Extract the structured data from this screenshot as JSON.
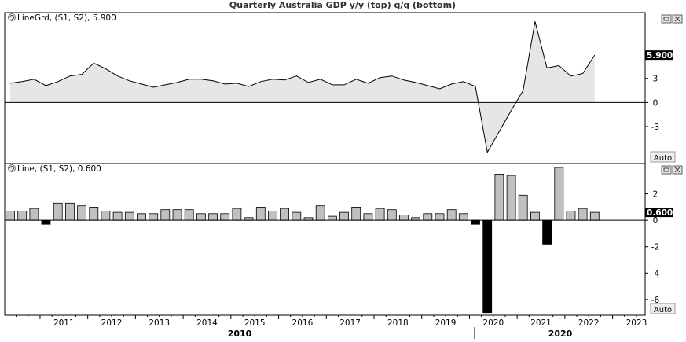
{
  "title": "Quarterly  Australia GDP y/y (top) q/q (bottom)",
  "colors": {
    "background": "#ffffff",
    "panel_border": "#000000",
    "top_line": "#000000",
    "top_fill": "#e6e6e6",
    "bar_positive": "#c0c0c0",
    "bar_negative": "#000000",
    "zero_line": "#000000",
    "last_value_bg": "#000000",
    "last_value_fg": "#ffffff"
  },
  "panels": {
    "top": {
      "legend_icon": "cycle-icon",
      "legend": "LineGrd, (S1, S2), 5.900",
      "last_value": "5.900",
      "scale_button": "Auto",
      "window_icons": [
        "restore-icon",
        "close-icon"
      ]
    },
    "bottom": {
      "legend_icon": "cycle-icon",
      "legend": "Line, (S1, S2), 0.600",
      "last_value": "0.600",
      "scale_button": "Auto",
      "window_icons": [
        "restore-icon",
        "close-icon"
      ]
    }
  },
  "x_axis": {
    "year_labels": [
      "2011",
      "2012",
      "2013",
      "2014",
      "2015",
      "2016",
      "2017",
      "2018",
      "2019",
      "2020",
      "2021",
      "2022",
      "2023"
    ],
    "decade_labels": [
      "2010",
      "2020"
    ]
  },
  "chart_data": [
    {
      "type": "area",
      "title": "Quarterly  Australia GDP y/y (top) q/q (bottom)",
      "series": [
        {
          "name": "LineGrd",
          "x": [
            "2010Q2",
            "2010Q3",
            "2010Q4",
            "2011Q1",
            "2011Q2",
            "2011Q3",
            "2011Q4",
            "2012Q1",
            "2012Q2",
            "2012Q3",
            "2012Q4",
            "2013Q1",
            "2013Q2",
            "2013Q3",
            "2013Q4",
            "2014Q1",
            "2014Q2",
            "2014Q3",
            "2014Q4",
            "2015Q1",
            "2015Q2",
            "2015Q3",
            "2015Q4",
            "2016Q1",
            "2016Q2",
            "2016Q3",
            "2016Q4",
            "2017Q1",
            "2017Q2",
            "2017Q3",
            "2017Q4",
            "2018Q1",
            "2018Q2",
            "2018Q3",
            "2018Q4",
            "2019Q1",
            "2019Q2",
            "2019Q3",
            "2019Q4",
            "2020Q1",
            "2020Q2",
            "2020Q3",
            "2020Q4",
            "2021Q1",
            "2021Q2",
            "2021Q3",
            "2021Q4",
            "2022Q1",
            "2022Q2",
            "2022Q3"
          ],
          "values": [
            2.4,
            2.6,
            2.9,
            2.1,
            2.6,
            3.3,
            3.5,
            4.9,
            4.2,
            3.3,
            2.7,
            2.3,
            1.9,
            2.2,
            2.5,
            2.9,
            2.9,
            2.7,
            2.3,
            2.4,
            2.0,
            2.6,
            2.9,
            2.8,
            3.3,
            2.5,
            2.9,
            2.2,
            2.2,
            2.9,
            2.4,
            3.1,
            3.3,
            2.8,
            2.5,
            2.1,
            1.7,
            2.3,
            2.6,
            2.0,
            -6.2,
            -3.6,
            -1.0,
            1.5,
            10.1,
            4.3,
            4.6,
            3.3,
            3.6,
            5.9
          ]
        }
      ],
      "ylim": [
        -7.6,
        11.2
      ],
      "yticks": [
        -3,
        0,
        3
      ],
      "last_value": 5.9,
      "grid": false
    },
    {
      "type": "bar",
      "series": [
        {
          "name": "Line",
          "x": [
            "2010Q2",
            "2010Q3",
            "2010Q4",
            "2011Q1",
            "2011Q2",
            "2011Q3",
            "2011Q4",
            "2012Q1",
            "2012Q2",
            "2012Q3",
            "2012Q4",
            "2013Q1",
            "2013Q2",
            "2013Q3",
            "2013Q4",
            "2014Q1",
            "2014Q2",
            "2014Q3",
            "2014Q4",
            "2015Q1",
            "2015Q2",
            "2015Q3",
            "2015Q4",
            "2016Q1",
            "2016Q2",
            "2016Q3",
            "2016Q4",
            "2017Q1",
            "2017Q2",
            "2017Q3",
            "2017Q4",
            "2018Q1",
            "2018Q2",
            "2018Q3",
            "2018Q4",
            "2019Q1",
            "2019Q2",
            "2019Q3",
            "2019Q4",
            "2020Q1",
            "2020Q2",
            "2020Q3",
            "2020Q4",
            "2021Q1",
            "2021Q2",
            "2021Q3",
            "2021Q4",
            "2022Q1",
            "2022Q2",
            "2022Q3"
          ],
          "values": [
            0.7,
            0.7,
            0.9,
            -0.3,
            1.3,
            1.3,
            1.1,
            1.0,
            0.7,
            0.6,
            0.6,
            0.5,
            0.5,
            0.8,
            0.8,
            0.8,
            0.5,
            0.5,
            0.5,
            0.9,
            0.2,
            1.0,
            0.7,
            0.9,
            0.6,
            0.2,
            1.1,
            0.3,
            0.6,
            1.0,
            0.5,
            0.9,
            0.8,
            0.4,
            0.2,
            0.5,
            0.5,
            0.8,
            0.5,
            -0.3,
            -7.0,
            3.5,
            3.4,
            1.9,
            0.6,
            -1.8,
            4.0,
            0.7,
            0.9,
            0.6
          ]
        }
      ],
      "ylim": [
        -7.2,
        4.3
      ],
      "yticks": [
        -6,
        -4,
        -2,
        0,
        2
      ],
      "last_value": 0.6,
      "grid": false
    }
  ]
}
